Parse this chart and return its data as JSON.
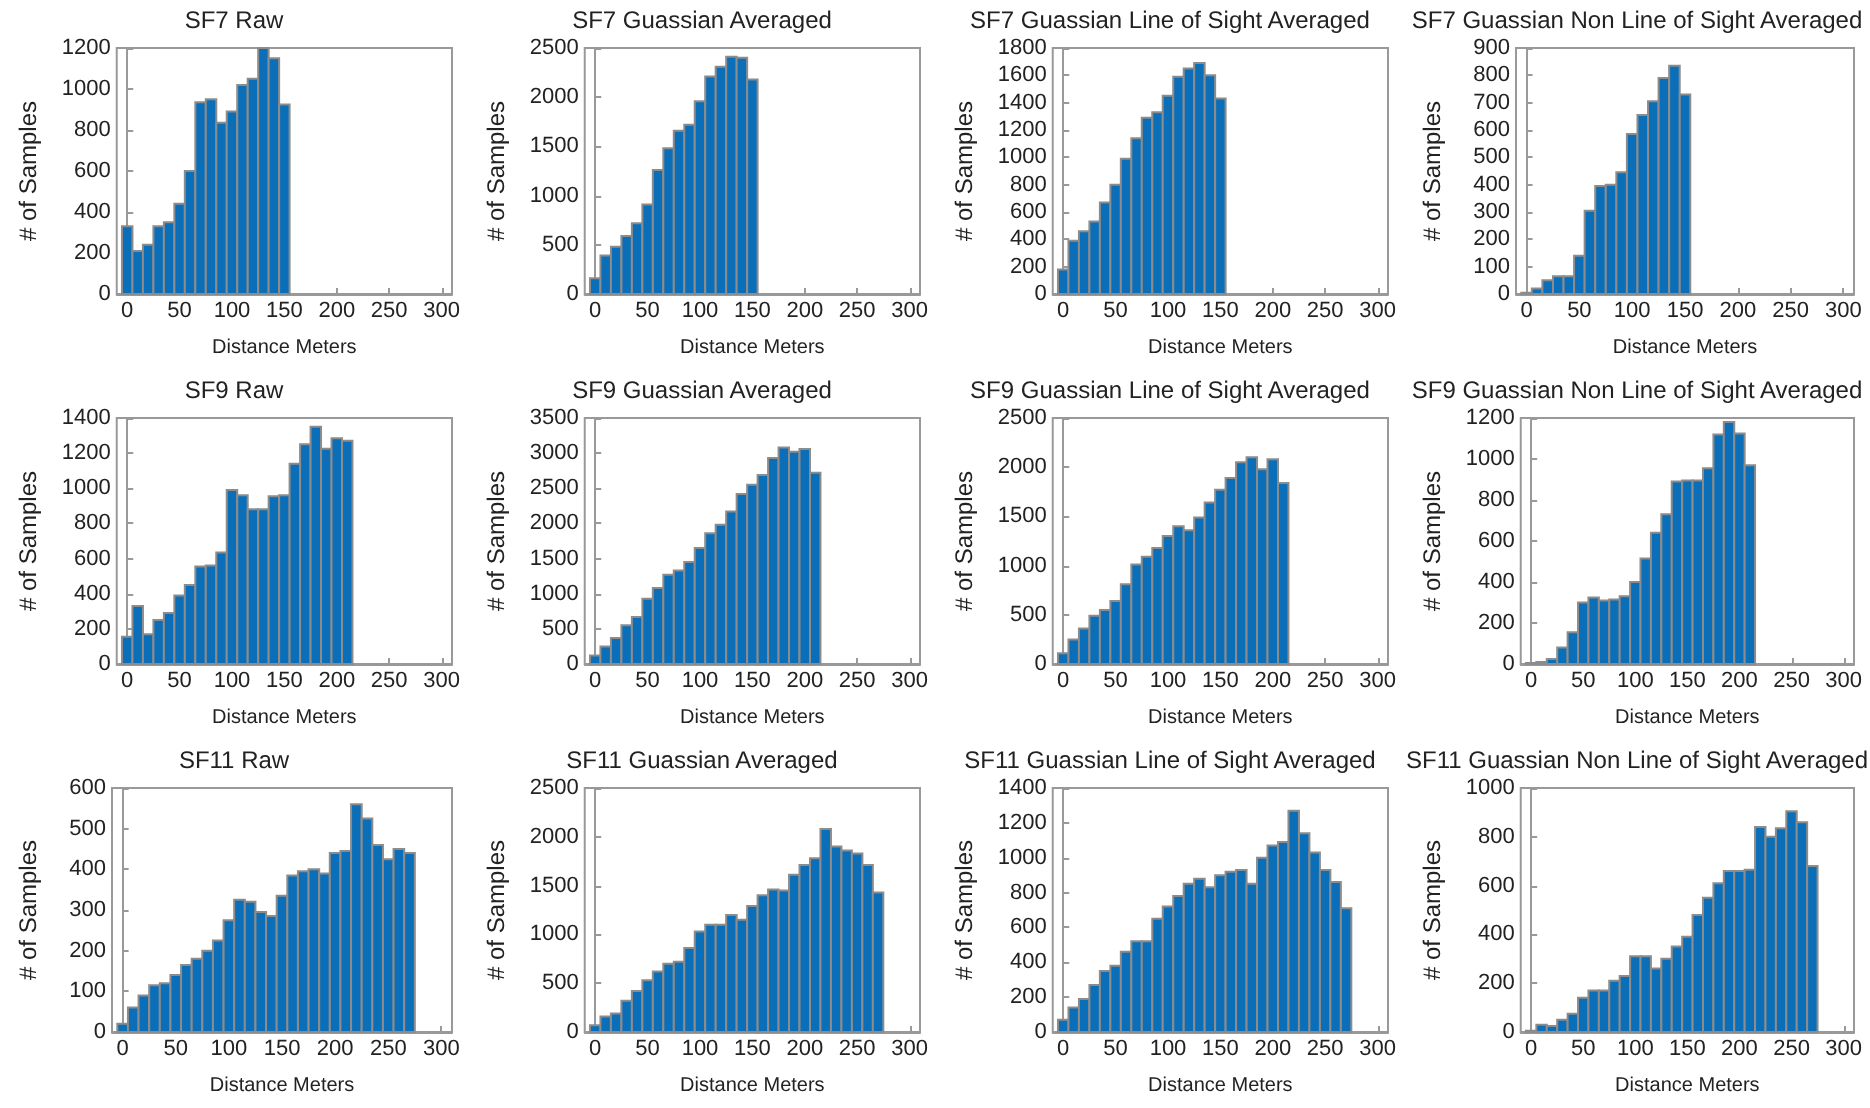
{
  "chart_data": [
    {
      "type": "histogram",
      "title": "SF7 Raw",
      "xlabel": "Distance Meters",
      "ylabel": "# of Samples",
      "color": "#0a6fb8",
      "xlim": [
        -10,
        310
      ],
      "xticks": [
        0,
        50,
        100,
        150,
        200,
        250,
        300
      ],
      "ylim": [
        0,
        1200
      ],
      "yticks": [
        0,
        200,
        400,
        600,
        800,
        1000,
        1200
      ],
      "bins": [
        -5,
        5,
        15,
        25,
        35,
        45,
        55,
        65,
        75,
        85,
        95,
        105,
        115,
        125,
        135,
        145,
        155
      ],
      "values": [
        330,
        210,
        240,
        330,
        350,
        440,
        600,
        935,
        950,
        835,
        890,
        1020,
        1050,
        1200,
        1150,
        925
      ]
    },
    {
      "type": "histogram",
      "title": "SF7 Guassian Averaged",
      "xlabel": "Distance Meters",
      "ylabel": "# of Samples",
      "color": "#0a6fb8",
      "xlim": [
        -10,
        310
      ],
      "xticks": [
        0,
        50,
        100,
        150,
        200,
        250,
        300
      ],
      "ylim": [
        0,
        2500
      ],
      "yticks": [
        0,
        500,
        1000,
        1500,
        2000,
        2500
      ],
      "bins": [
        -5,
        5,
        15,
        25,
        35,
        45,
        55,
        65,
        75,
        85,
        95,
        105,
        115,
        125,
        135,
        145,
        155
      ],
      "values": [
        160,
        390,
        480,
        590,
        720,
        910,
        1260,
        1480,
        1660,
        1720,
        1960,
        2210,
        2310,
        2410,
        2400,
        2180
      ]
    },
    {
      "type": "histogram",
      "title": "SF7 Guassian Line of Sight Averaged",
      "xlabel": "Distance Meters",
      "ylabel": "# of Samples",
      "color": "#0a6fb8",
      "xlim": [
        -10,
        310
      ],
      "xticks": [
        0,
        50,
        100,
        150,
        200,
        250,
        300
      ],
      "ylim": [
        0,
        1800
      ],
      "yticks": [
        0,
        200,
        400,
        600,
        800,
        1000,
        1200,
        1400,
        1600,
        1800
      ],
      "bins": [
        -5,
        5,
        15,
        25,
        35,
        45,
        55,
        65,
        75,
        85,
        95,
        105,
        115,
        125,
        135,
        145,
        155
      ],
      "values": [
        180,
        390,
        460,
        530,
        670,
        800,
        990,
        1140,
        1290,
        1330,
        1450,
        1590,
        1650,
        1690,
        1600,
        1430
      ]
    },
    {
      "type": "histogram",
      "title": "SF7 Guassian Non Line of Sight Averaged",
      "xlabel": "Distance Meters",
      "ylabel": "# of Samples",
      "color": "#0a6fb8",
      "xlim": [
        -10,
        310
      ],
      "xticks": [
        0,
        50,
        100,
        150,
        200,
        250,
        300
      ],
      "ylim": [
        0,
        900
      ],
      "yticks": [
        0,
        100,
        200,
        300,
        400,
        500,
        600,
        700,
        800,
        900
      ],
      "bins": [
        -5,
        5,
        15,
        25,
        35,
        45,
        55,
        65,
        75,
        85,
        95,
        105,
        115,
        125,
        135,
        145,
        155
      ],
      "values": [
        5,
        20,
        50,
        65,
        65,
        140,
        305,
        395,
        400,
        445,
        585,
        655,
        705,
        790,
        835,
        730
      ]
    },
    {
      "type": "histogram",
      "title": "SF9 Raw",
      "xlabel": "Distance Meters",
      "ylabel": "# of Samples",
      "color": "#0a6fb8",
      "xlim": [
        -10,
        310
      ],
      "xticks": [
        0,
        50,
        100,
        150,
        200,
        250,
        300
      ],
      "ylim": [
        0,
        1400
      ],
      "yticks": [
        0,
        200,
        400,
        600,
        800,
        1000,
        1200,
        1400
      ],
      "bins": [
        -5,
        5,
        15,
        25,
        35,
        45,
        55,
        65,
        75,
        85,
        95,
        105,
        115,
        125,
        135,
        145,
        155,
        165,
        175,
        185,
        195,
        205,
        215
      ],
      "values": [
        155,
        330,
        170,
        250,
        290,
        390,
        450,
        555,
        560,
        635,
        990,
        960,
        880,
        880,
        955,
        960,
        1140,
        1250,
        1350,
        1225,
        1285,
        1270
      ]
    },
    {
      "type": "histogram",
      "title": "SF9 Guassian Averaged",
      "xlabel": "Distance Meters",
      "ylabel": "# of Samples",
      "color": "#0a6fb8",
      "xlim": [
        -10,
        310
      ],
      "xticks": [
        0,
        50,
        100,
        150,
        200,
        250,
        300
      ],
      "ylim": [
        0,
        3500
      ],
      "yticks": [
        0,
        500,
        1000,
        1500,
        2000,
        2500,
        3000,
        3500
      ],
      "bins": [
        -5,
        5,
        15,
        25,
        35,
        45,
        55,
        65,
        75,
        85,
        95,
        105,
        115,
        125,
        135,
        145,
        155,
        165,
        175,
        185,
        195,
        205,
        215
      ],
      "values": [
        120,
        250,
        370,
        550,
        670,
        930,
        1080,
        1270,
        1330,
        1450,
        1650,
        1860,
        1980,
        2170,
        2420,
        2550,
        2690,
        2930,
        3080,
        3020,
        3060,
        2720
      ]
    },
    {
      "type": "histogram",
      "title": "SF9 Guassian Line of Sight Averaged",
      "xlabel": "Distance Meters",
      "ylabel": "# of Samples",
      "color": "#0a6fb8",
      "xlim": [
        -10,
        310
      ],
      "xticks": [
        0,
        50,
        100,
        150,
        200,
        250,
        300
      ],
      "ylim": [
        0,
        2500
      ],
      "yticks": [
        0,
        500,
        1000,
        1500,
        2000,
        2500
      ],
      "bins": [
        -5,
        5,
        15,
        25,
        35,
        45,
        55,
        65,
        75,
        85,
        95,
        105,
        115,
        125,
        135,
        145,
        155,
        165,
        175,
        185,
        195,
        205,
        215
      ],
      "values": [
        110,
        250,
        360,
        490,
        550,
        640,
        810,
        1010,
        1090,
        1180,
        1300,
        1400,
        1360,
        1490,
        1640,
        1770,
        1890,
        2050,
        2100,
        1980,
        2080,
        1840
      ]
    },
    {
      "type": "histogram",
      "title": "SF9 Guassian Non Line of Sight Averaged",
      "xlabel": "Distance Meters",
      "ylabel": "# of Samples",
      "color": "#0a6fb8",
      "xlim": [
        -10,
        310
      ],
      "xticks": [
        0,
        50,
        100,
        150,
        200,
        250,
        300
      ],
      "ylim": [
        0,
        1200
      ],
      "yticks": [
        0,
        200,
        400,
        600,
        800,
        1000,
        1200
      ],
      "bins": [
        -5,
        5,
        15,
        25,
        35,
        45,
        55,
        65,
        75,
        85,
        95,
        105,
        115,
        125,
        135,
        145,
        155,
        165,
        175,
        185,
        195,
        205,
        215
      ],
      "values": [
        5,
        10,
        25,
        80,
        155,
        300,
        325,
        310,
        315,
        330,
        400,
        515,
        640,
        730,
        890,
        895,
        895,
        955,
        1120,
        1180,
        1125,
        970
      ]
    },
    {
      "type": "histogram",
      "title": "SF11 Raw",
      "xlabel": "Distance Meters",
      "ylabel": "# of Samples",
      "color": "#0a6fb8",
      "xlim": [
        -10,
        310
      ],
      "xticks": [
        0,
        50,
        100,
        150,
        200,
        250,
        300
      ],
      "ylim": [
        0,
        600
      ],
      "yticks": [
        0,
        100,
        200,
        300,
        400,
        500,
        600
      ],
      "bins": [
        -5,
        5,
        15,
        25,
        35,
        45,
        55,
        65,
        75,
        85,
        95,
        105,
        115,
        125,
        135,
        145,
        155,
        165,
        175,
        185,
        195,
        205,
        215,
        225,
        235,
        245,
        255,
        265,
        275
      ],
      "values": [
        20,
        60,
        90,
        115,
        120,
        140,
        165,
        180,
        200,
        225,
        275,
        325,
        320,
        295,
        285,
        335,
        385,
        395,
        400,
        390,
        440,
        445,
        560,
        525,
        460,
        425,
        450,
        440
      ]
    },
    {
      "type": "histogram",
      "title": "SF11 Guassian Averaged",
      "xlabel": "Distance Meters",
      "ylabel": "# of Samples",
      "color": "#0a6fb8",
      "xlim": [
        -10,
        310
      ],
      "xticks": [
        0,
        50,
        100,
        150,
        200,
        250,
        300
      ],
      "ylim": [
        0,
        2500
      ],
      "yticks": [
        0,
        500,
        1000,
        1500,
        2000,
        2500
      ],
      "bins": [
        -5,
        5,
        15,
        25,
        35,
        45,
        55,
        65,
        75,
        85,
        95,
        105,
        115,
        125,
        135,
        145,
        155,
        165,
        175,
        185,
        195,
        205,
        215,
        225,
        235,
        245,
        255,
        265,
        275
      ],
      "values": [
        70,
        160,
        190,
        320,
        420,
        530,
        620,
        700,
        720,
        860,
        1030,
        1100,
        1100,
        1200,
        1150,
        1290,
        1400,
        1460,
        1450,
        1610,
        1710,
        1780,
        2080,
        1900,
        1860,
        1830,
        1710,
        1430
      ]
    },
    {
      "type": "histogram",
      "title": "SF11 Guassian Line of Sight Averaged",
      "xlabel": "Distance Meters",
      "ylabel": "# of Samples",
      "color": "#0a6fb8",
      "xlim": [
        -10,
        310
      ],
      "xticks": [
        0,
        50,
        100,
        150,
        200,
        250,
        300
      ],
      "ylim": [
        0,
        1400
      ],
      "yticks": [
        0,
        200,
        400,
        600,
        800,
        1000,
        1200,
        1400
      ],
      "bins": [
        -5,
        5,
        15,
        25,
        35,
        45,
        55,
        65,
        75,
        85,
        95,
        105,
        115,
        125,
        135,
        145,
        155,
        165,
        175,
        185,
        195,
        205,
        215,
        225,
        235,
        245,
        255,
        265,
        275
      ],
      "values": [
        70,
        140,
        190,
        270,
        350,
        380,
        460,
        520,
        520,
        650,
        720,
        780,
        850,
        880,
        830,
        900,
        920,
        930,
        850,
        1000,
        1070,
        1090,
        1270,
        1140,
        1030,
        930,
        860,
        710
      ]
    },
    {
      "type": "histogram",
      "title": "SF11 Guassian Non Line of Sight Averaged",
      "xlabel": "Distance Meters",
      "ylabel": "# of Samples",
      "color": "#0a6fb8",
      "xlim": [
        -10,
        310
      ],
      "xticks": [
        0,
        50,
        100,
        150,
        200,
        250,
        300
      ],
      "ylim": [
        0,
        1000
      ],
      "yticks": [
        0,
        200,
        400,
        600,
        800,
        1000
      ],
      "bins": [
        -5,
        5,
        15,
        25,
        35,
        45,
        55,
        65,
        75,
        85,
        95,
        105,
        115,
        125,
        135,
        145,
        155,
        165,
        175,
        185,
        195,
        205,
        215,
        225,
        235,
        245,
        255,
        265,
        275
      ],
      "values": [
        5,
        30,
        25,
        50,
        75,
        140,
        170,
        170,
        210,
        230,
        310,
        310,
        260,
        300,
        350,
        390,
        480,
        550,
        610,
        660,
        660,
        665,
        840,
        800,
        835,
        905,
        860,
        680
      ]
    }
  ]
}
